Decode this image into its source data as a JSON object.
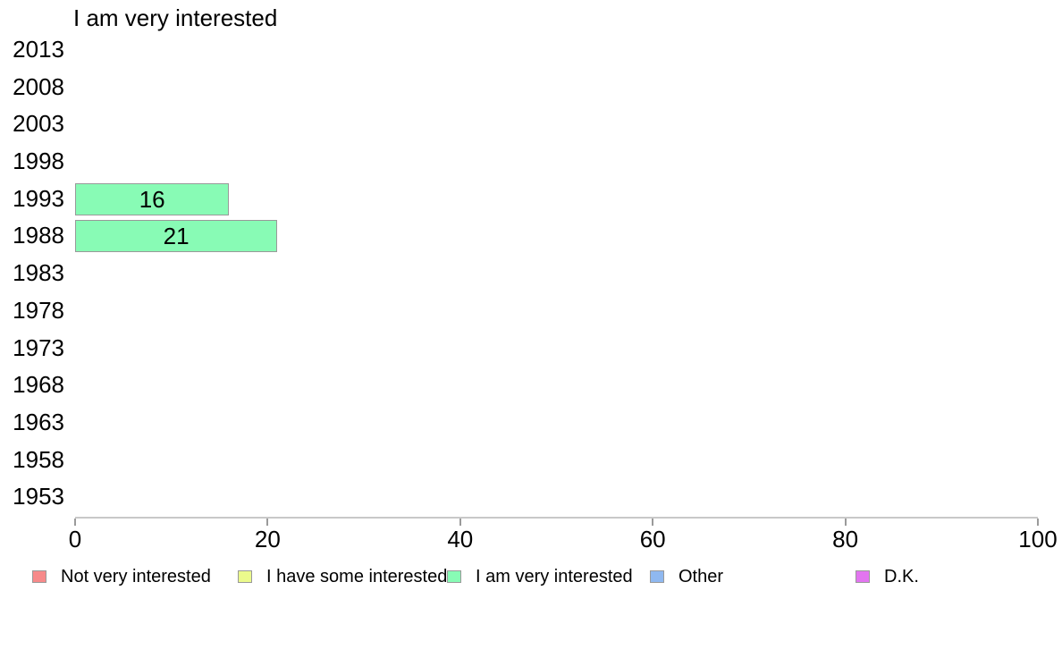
{
  "title": "I am very interested",
  "chart_data": {
    "type": "bar",
    "orientation": "horizontal",
    "title": "I am very interested",
    "xlabel": "",
    "ylabel": "",
    "grid": false,
    "xlim": [
      0,
      100
    ],
    "x_ticks": [
      "0",
      "20",
      "40",
      "60",
      "80",
      "100"
    ],
    "categories": [
      "2013",
      "2008",
      "2003",
      "1998",
      "1993",
      "1988",
      "1983",
      "1978",
      "1973",
      "1968",
      "1963",
      "1958",
      "1953"
    ],
    "series": [
      {
        "name": "I am very interested",
        "values": [
          null,
          null,
          null,
          null,
          16,
          21,
          null,
          null,
          null,
          null,
          null,
          null,
          null
        ],
        "color": "#88FBB5",
        "border_color": "#999999"
      }
    ],
    "bar_labels": {
      "1993": "16",
      "1988": "21"
    },
    "legend_position": "bottom",
    "legend": [
      {
        "label": "Not very interested",
        "color": "#F78A8A"
      },
      {
        "label": "I have some interested",
        "color": "#EBFA8C"
      },
      {
        "label": "I am very interested",
        "color": "#88FBB5"
      },
      {
        "label": "Other",
        "color": "#8FB8F0"
      },
      {
        "label": "D.K.",
        "color": "#E275F0"
      }
    ],
    "colors": {
      "axis_line": "#c8c8c8",
      "tick_mark": "#9a9a9a",
      "text": "#000000",
      "background": "#ffffff"
    }
  }
}
